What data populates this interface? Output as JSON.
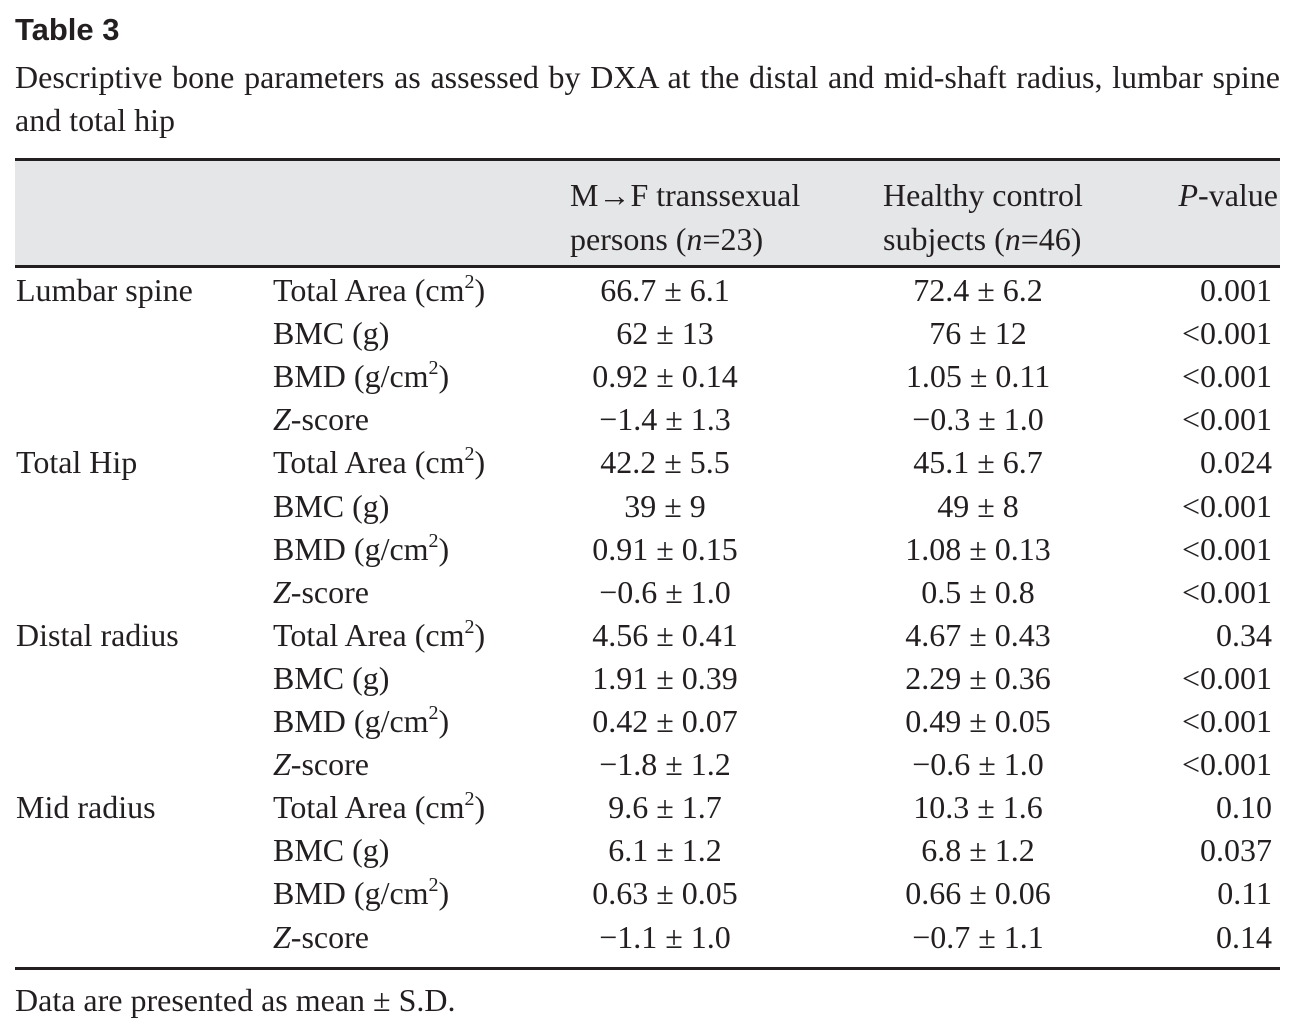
{
  "title": "Table 3",
  "caption": "Descriptive bone parameters as assessed by DXA at the distal and mid-shaft radius, lumbar spine and total hip",
  "header": {
    "col1": {
      "line1": "M→F transsexual",
      "line2_pre": "persons (",
      "n": "n",
      "line2_post": "=23)"
    },
    "col2": {
      "line1": "Healthy control",
      "line2_pre": "subjects (",
      "n": "n",
      "line2_post": "=46)"
    },
    "col3": {
      "italic": "P",
      "rest": "-value"
    }
  },
  "rows": [
    {
      "group": "Lumbar spine",
      "param": {
        "italic": "",
        "main": "Total Area (cm",
        "sup": "2",
        "tail": ")"
      },
      "mf": "66.7 ± 6.1",
      "hc": "72.4 ± 6.2",
      "p": "0.001"
    },
    {
      "group": "",
      "param": {
        "italic": "",
        "main": "BMC (g)",
        "sup": "",
        "tail": ""
      },
      "mf": "62 ± 13",
      "hc": "76 ± 12",
      "p": "<0.001"
    },
    {
      "group": "",
      "param": {
        "italic": "",
        "main": "BMD (g/cm",
        "sup": "2",
        "tail": ")"
      },
      "mf": "0.92 ± 0.14",
      "hc": "1.05 ± 0.11",
      "p": "<0.001"
    },
    {
      "group": "",
      "param": {
        "italic": "Z",
        "main": "-score",
        "sup": "",
        "tail": ""
      },
      "mf": "−1.4 ± 1.3",
      "hc": "−0.3 ± 1.0",
      "p": "<0.001"
    },
    {
      "group": "Total Hip",
      "param": {
        "italic": "",
        "main": "Total Area (cm",
        "sup": "2",
        "tail": ")"
      },
      "mf": "42.2 ± 5.5",
      "hc": "45.1 ± 6.7",
      "p": "0.024"
    },
    {
      "group": "",
      "param": {
        "italic": "",
        "main": "BMC (g)",
        "sup": "",
        "tail": ""
      },
      "mf": "39 ± 9",
      "hc": "49 ± 8",
      "p": "<0.001"
    },
    {
      "group": "",
      "param": {
        "italic": "",
        "main": "BMD (g/cm",
        "sup": "2",
        "tail": ")"
      },
      "mf": "0.91 ± 0.15",
      "hc": "1.08 ± 0.13",
      "p": "<0.001"
    },
    {
      "group": "",
      "param": {
        "italic": "Z",
        "main": "-score",
        "sup": "",
        "tail": ""
      },
      "mf": "−0.6 ± 1.0",
      "hc": "0.5 ± 0.8",
      "p": "<0.001"
    },
    {
      "group": "Distal radius",
      "param": {
        "italic": "",
        "main": "Total Area (cm",
        "sup": "2",
        "tail": ")"
      },
      "mf": "4.56 ± 0.41",
      "hc": "4.67 ± 0.43",
      "p": "0.34"
    },
    {
      "group": "",
      "param": {
        "italic": "",
        "main": "BMC (g)",
        "sup": "",
        "tail": ""
      },
      "mf": "1.91 ± 0.39",
      "hc": "2.29 ± 0.36",
      "p": "<0.001"
    },
    {
      "group": "",
      "param": {
        "italic": "",
        "main": "BMD (g/cm",
        "sup": "2",
        "tail": ")"
      },
      "mf": "0.42 ± 0.07",
      "hc": "0.49 ± 0.05",
      "p": "<0.001"
    },
    {
      "group": "",
      "param": {
        "italic": "Z",
        "main": "-score",
        "sup": "",
        "tail": ""
      },
      "mf": "−1.8 ± 1.2",
      "hc": "−0.6 ± 1.0",
      "p": "<0.001"
    },
    {
      "group": "Mid radius",
      "param": {
        "italic": "",
        "main": "Total Area (cm",
        "sup": "2",
        "tail": ")"
      },
      "mf": "9.6 ± 1.7",
      "hc": "10.3 ± 1.6",
      "p": "0.10"
    },
    {
      "group": "",
      "param": {
        "italic": "",
        "main": "BMC (g)",
        "sup": "",
        "tail": ""
      },
      "mf": "6.1 ± 1.2",
      "hc": "6.8 ± 1.2",
      "p": "0.037"
    },
    {
      "group": "",
      "param": {
        "italic": "",
        "main": "BMD (g/cm",
        "sup": "2",
        "tail": ")"
      },
      "mf": "0.63 ± 0.05",
      "hc": "0.66 ± 0.06",
      "p": "0.11"
    },
    {
      "group": "",
      "param": {
        "italic": "Z",
        "main": "-score",
        "sup": "",
        "tail": ""
      },
      "mf": "−1.1 ± 1.0",
      "hc": "−0.7 ± 1.1",
      "p": "0.14"
    }
  ],
  "footnote": "Data are presented as mean ± S.D."
}
